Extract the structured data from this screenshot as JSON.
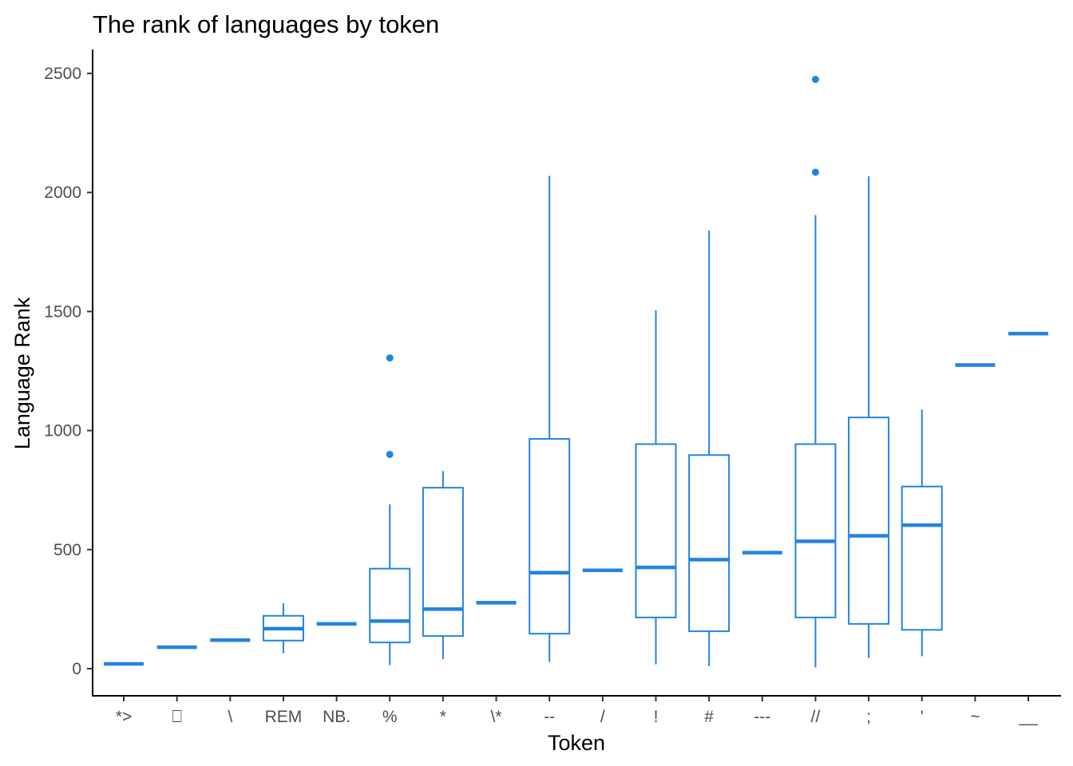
{
  "chart_data": {
    "type": "boxplot",
    "title": "The rank of languages by token",
    "xlabel": "Token",
    "ylabel": "Language Rank",
    "ylim": [
      -110,
      2600
    ],
    "yticks": [
      0,
      500,
      1000,
      1500,
      2000,
      2500
    ],
    "grid": false,
    "legend": "none",
    "color": "#2283e3",
    "categories": [
      "*>",
      "⎕",
      "\\",
      "REM",
      "NB.",
      "%",
      "*",
      "\\*",
      "--",
      "/",
      "!",
      "#",
      "---",
      "//",
      ";",
      "'",
      "~",
      "__"
    ],
    "boxes": [
      {
        "category": "*>",
        "min": 20,
        "q1": 20,
        "median": 20,
        "q3": 20,
        "max": 20,
        "outliers": []
      },
      {
        "category": "⎕",
        "min": 90,
        "q1": 90,
        "median": 90,
        "q3": 90,
        "max": 90,
        "outliers": []
      },
      {
        "category": "\\",
        "min": 120,
        "q1": 120,
        "median": 120,
        "q3": 120,
        "max": 120,
        "outliers": []
      },
      {
        "category": "REM",
        "min": 65,
        "q1": 118,
        "median": 168,
        "q3": 222,
        "max": 275,
        "outliers": []
      },
      {
        "category": "NB.",
        "min": 188,
        "q1": 188,
        "median": 188,
        "q3": 188,
        "max": 188,
        "outliers": []
      },
      {
        "category": "%",
        "min": 15,
        "q1": 110,
        "median": 200,
        "q3": 420,
        "max": 690,
        "outliers": [
          900,
          1305
        ]
      },
      {
        "category": "*",
        "min": 40,
        "q1": 137,
        "median": 250,
        "q3": 760,
        "max": 830,
        "outliers": []
      },
      {
        "category": "\\*",
        "min": 277,
        "q1": 277,
        "median": 277,
        "q3": 277,
        "max": 277,
        "outliers": []
      },
      {
        "category": "--",
        "min": 28,
        "q1": 147,
        "median": 403,
        "q3": 965,
        "max": 2070,
        "outliers": []
      },
      {
        "category": "/",
        "min": 413,
        "q1": 413,
        "median": 413,
        "q3": 413,
        "max": 413,
        "outliers": []
      },
      {
        "category": "!",
        "min": 18,
        "q1": 215,
        "median": 425,
        "q3": 943,
        "max": 1505,
        "outliers": []
      },
      {
        "category": "#",
        "min": 10,
        "q1": 157,
        "median": 458,
        "q3": 897,
        "max": 1840,
        "outliers": []
      },
      {
        "category": "---",
        "min": 487,
        "q1": 487,
        "median": 487,
        "q3": 487,
        "max": 487,
        "outliers": []
      },
      {
        "category": "//",
        "min": 5,
        "q1": 215,
        "median": 535,
        "q3": 943,
        "max": 1905,
        "outliers": [
          2085,
          2475
        ]
      },
      {
        "category": ";",
        "min": 45,
        "q1": 188,
        "median": 558,
        "q3": 1055,
        "max": 2068,
        "outliers": []
      },
      {
        "category": "'",
        "min": 52,
        "q1": 163,
        "median": 603,
        "q3": 765,
        "max": 1088,
        "outliers": []
      },
      {
        "category": "~",
        "min": 1275,
        "q1": 1275,
        "median": 1275,
        "q3": 1275,
        "max": 1275,
        "outliers": []
      },
      {
        "category": "__",
        "min": 1407,
        "q1": 1407,
        "median": 1407,
        "q3": 1407,
        "max": 1407,
        "outliers": []
      }
    ]
  }
}
